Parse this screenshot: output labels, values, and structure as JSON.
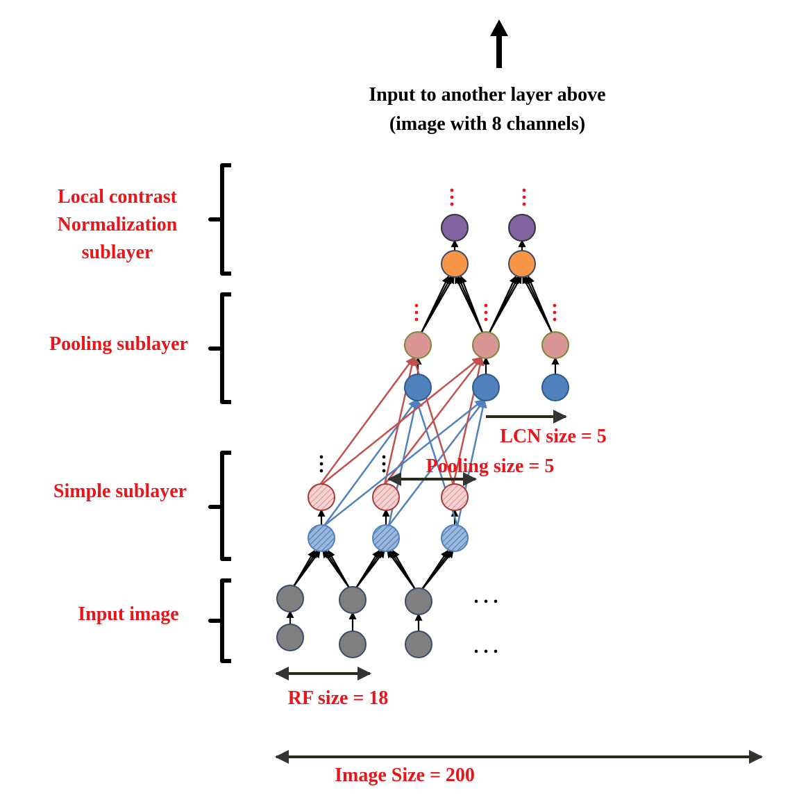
{
  "top_caption": {
    "line1": "Input to another layer above",
    "line2": "(image with 8 channels)"
  },
  "layer_labels": {
    "lcn_line1": "Local contrast",
    "lcn_line2": "Normalization",
    "lcn_line3": "sublayer",
    "pooling": "Pooling sublayer",
    "simple": "Simple sublayer",
    "input": "Input image"
  },
  "annotations": {
    "lcn_size": "LCN size = 5",
    "pooling_size": "Pooling size = 5",
    "rf_size": "RF size = 18",
    "image_size": "Image Size = 200"
  },
  "ellipsis": {
    "vertical": "⋮",
    "horizontal": ". . ."
  },
  "colors": {
    "label_red": "#e8161b",
    "input_gray": "#808080",
    "simple_blue": "#4f81bd",
    "simple_pink": "#e6a3a3",
    "pool_blue": "#4f81bd",
    "pool_pink": "#d99694",
    "lcn_orange": "#f79646",
    "lcn_purple": "#8064a2",
    "arrow_red": "#c0504d",
    "arrow_blue": "#4f81bd"
  }
}
